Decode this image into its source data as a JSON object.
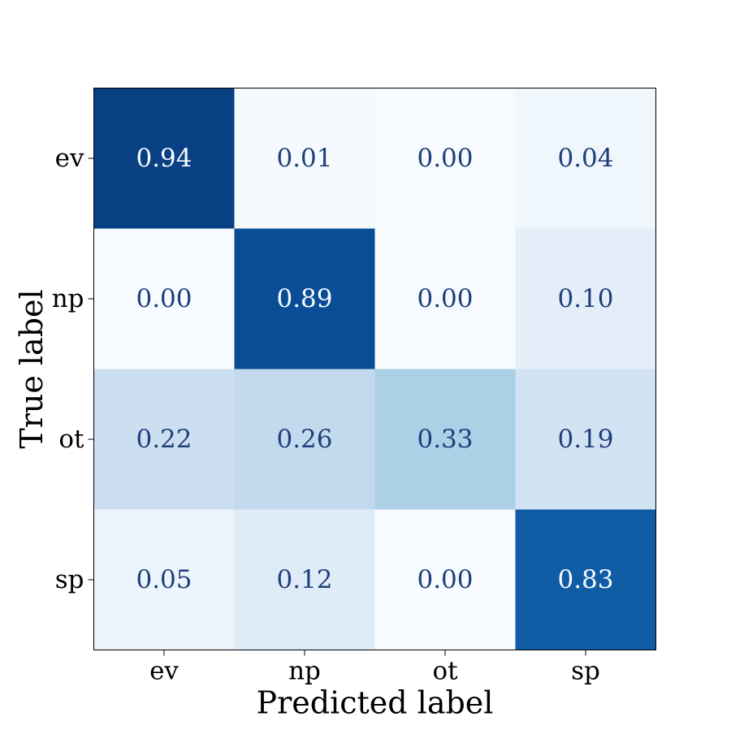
{
  "chart_data": {
    "type": "heatmap",
    "title": "",
    "xlabel": "Predicted label",
    "ylabel": "True label",
    "x_categories": [
      "ev",
      "np",
      "ot",
      "sp"
    ],
    "y_categories": [
      "ev",
      "np",
      "ot",
      "sp"
    ],
    "values": [
      [
        0.94,
        0.01,
        0.0,
        0.04
      ],
      [
        0.0,
        0.89,
        0.0,
        0.1
      ],
      [
        0.22,
        0.26,
        0.33,
        0.19
      ],
      [
        0.05,
        0.12,
        0.0,
        0.83
      ]
    ],
    "value_labels": [
      [
        "0.94",
        "0.01",
        "0.00",
        "0.04"
      ],
      [
        "0.00",
        "0.89",
        "0.00",
        "0.10"
      ],
      [
        "0.22",
        "0.26",
        "0.33",
        "0.19"
      ],
      [
        "0.05",
        "0.12",
        "0.00",
        "0.83"
      ]
    ],
    "colormap": "Blues",
    "vmin": 0,
    "vmax": 1,
    "colorbar": false,
    "grid": false
  }
}
